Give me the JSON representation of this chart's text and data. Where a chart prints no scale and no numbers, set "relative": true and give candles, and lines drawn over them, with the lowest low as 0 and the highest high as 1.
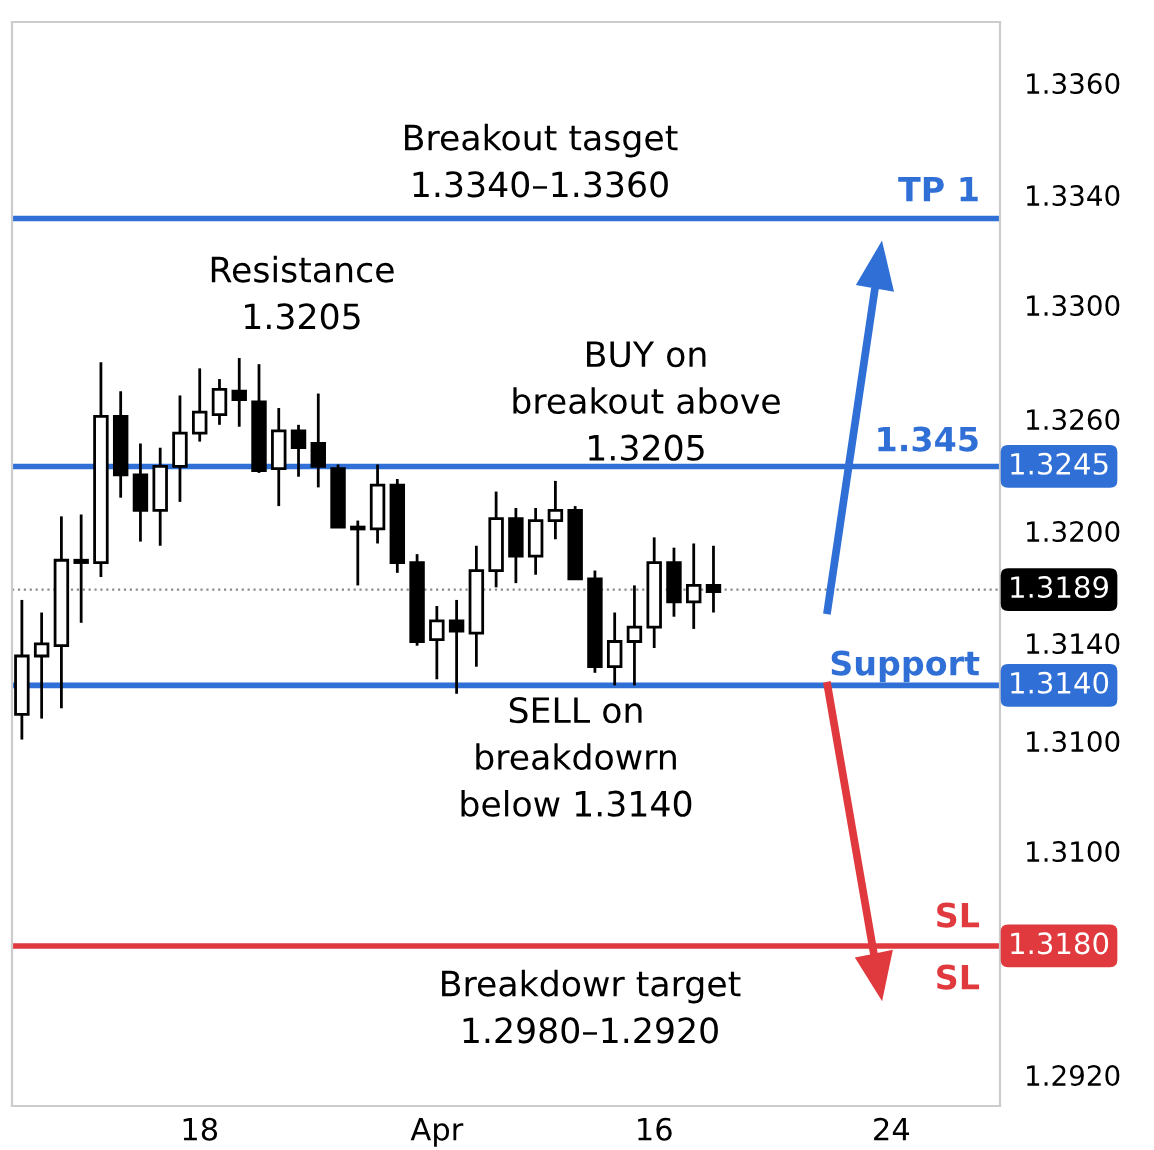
{
  "chart_data": {
    "type": "candlestick",
    "relative": true,
    "categories": [
      null,
      null,
      null,
      null,
      null,
      null,
      null,
      null,
      null,
      "18",
      null,
      null,
      null,
      null,
      null,
      null,
      null,
      null,
      null,
      null,
      null,
      "Apr",
      null,
      null,
      null,
      null,
      null,
      null,
      null,
      null,
      null,
      null,
      "16",
      null,
      null,
      null,
      null,
      null,
      null,
      null,
      null,
      null,
      null,
      null,
      "24",
      null,
      null,
      null,
      null,
      null
    ],
    "ohlc": [
      [
        0.066,
        0.366,
        0,
        0.219
      ],
      [
        0.219,
        0.333,
        0.055,
        0.251
      ],
      [
        0.246,
        0.585,
        0.082,
        0.47
      ],
      [
        0.464,
        0.59,
        0.306,
        0.47
      ],
      [
        0.464,
        0.989,
        0.426,
        0.847
      ],
      [
        0.847,
        0.913,
        0.634,
        0.694
      ],
      [
        0.694,
        0.776,
        0.519,
        0.601
      ],
      [
        0.601,
        0.765,
        0.508,
        0.716
      ],
      [
        0.716,
        0.902,
        0.623,
        0.803
      ],
      [
        0.803,
        0.973,
        0.781,
        0.858
      ],
      [
        0.852,
        0.945,
        0.825,
        0.918
      ],
      [
        0.913,
        1,
        0.82,
        0.891
      ],
      [
        0.885,
        0.984,
        0.699,
        0.705
      ],
      [
        0.71,
        0.869,
        0.612,
        0.809
      ],
      [
        0.809,
        0.825,
        0.689,
        0.765
      ],
      [
        0.776,
        0.907,
        0.661,
        0.716
      ],
      [
        0.71,
        0.721,
        0.557,
        0.557
      ],
      [
        0.557,
        0.574,
        0.404,
        0.552
      ],
      [
        0.552,
        0.721,
        0.514,
        0.667
      ],
      [
        0.667,
        0.683,
        0.437,
        0.464
      ],
      [
        0.464,
        0.486,
        0.246,
        0.257
      ],
      [
        0.262,
        0.35,
        0.158,
        0.311
      ],
      [
        0.311,
        0.366,
        0.12,
        0.284
      ],
      [
        0.279,
        0.508,
        0.191,
        0.443
      ],
      [
        0.443,
        0.65,
        0.399,
        0.579
      ],
      [
        0.579,
        0.607,
        0.41,
        0.481
      ],
      [
        0.481,
        0.607,
        0.432,
        0.574
      ],
      [
        0.574,
        0.678,
        0.525,
        0.601
      ],
      [
        0.601,
        0.612,
        0.421,
        0.421
      ],
      [
        0.421,
        0.443,
        0.175,
        0.191
      ],
      [
        0.191,
        0.333,
        0.142,
        0.257
      ],
      [
        0.257,
        0.404,
        0.142,
        0.295
      ],
      [
        0.295,
        0.53,
        0.24,
        0.464
      ],
      [
        0.464,
        0.503,
        0.322,
        0.361
      ],
      [
        0.361,
        0.514,
        0.29,
        0.404
      ],
      [
        0.404,
        0.508,
        0.333,
        0.388
      ],
      null,
      null,
      null,
      null,
      null,
      null,
      null,
      null,
      null,
      null,
      null,
      null,
      null,
      null
    ],
    "ref_lines": [
      {
        "axis": "y",
        "value": 1.366,
        "color": "#2f6fd6"
      },
      {
        "axis": "y",
        "value": 0.716,
        "color": "#2f6fd6"
      },
      {
        "axis": "y",
        "value": 0.393,
        "color": "#000000",
        "line_style": "dotted"
      },
      {
        "axis": "y",
        "value": 0.142,
        "color": "#2f6fd6"
      },
      {
        "axis": "y",
        "value": -0.541,
        "color": "#e0393e"
      }
    ],
    "annotations": [
      "Breakout tasget\n1.3340–1.3360",
      "Resistance\n1.3205",
      "BUY on\nbreakout above\n1.3205",
      "SELL on\nbreakdowrn\nbelow 1.3140",
      "Breakdowr target\n1.2980–1.2920",
      "TP 1",
      "1.345",
      "Support",
      "SL",
      "SL",
      "1.3245",
      "1.3189",
      "1.3140",
      "1.3180",
      "1.3360",
      "1.3340",
      "1.3300",
      "1.3260",
      "1.3200",
      "1.3140",
      "1.3100",
      "1.3100",
      "1.2920"
    ],
    "grid": false
  }
}
